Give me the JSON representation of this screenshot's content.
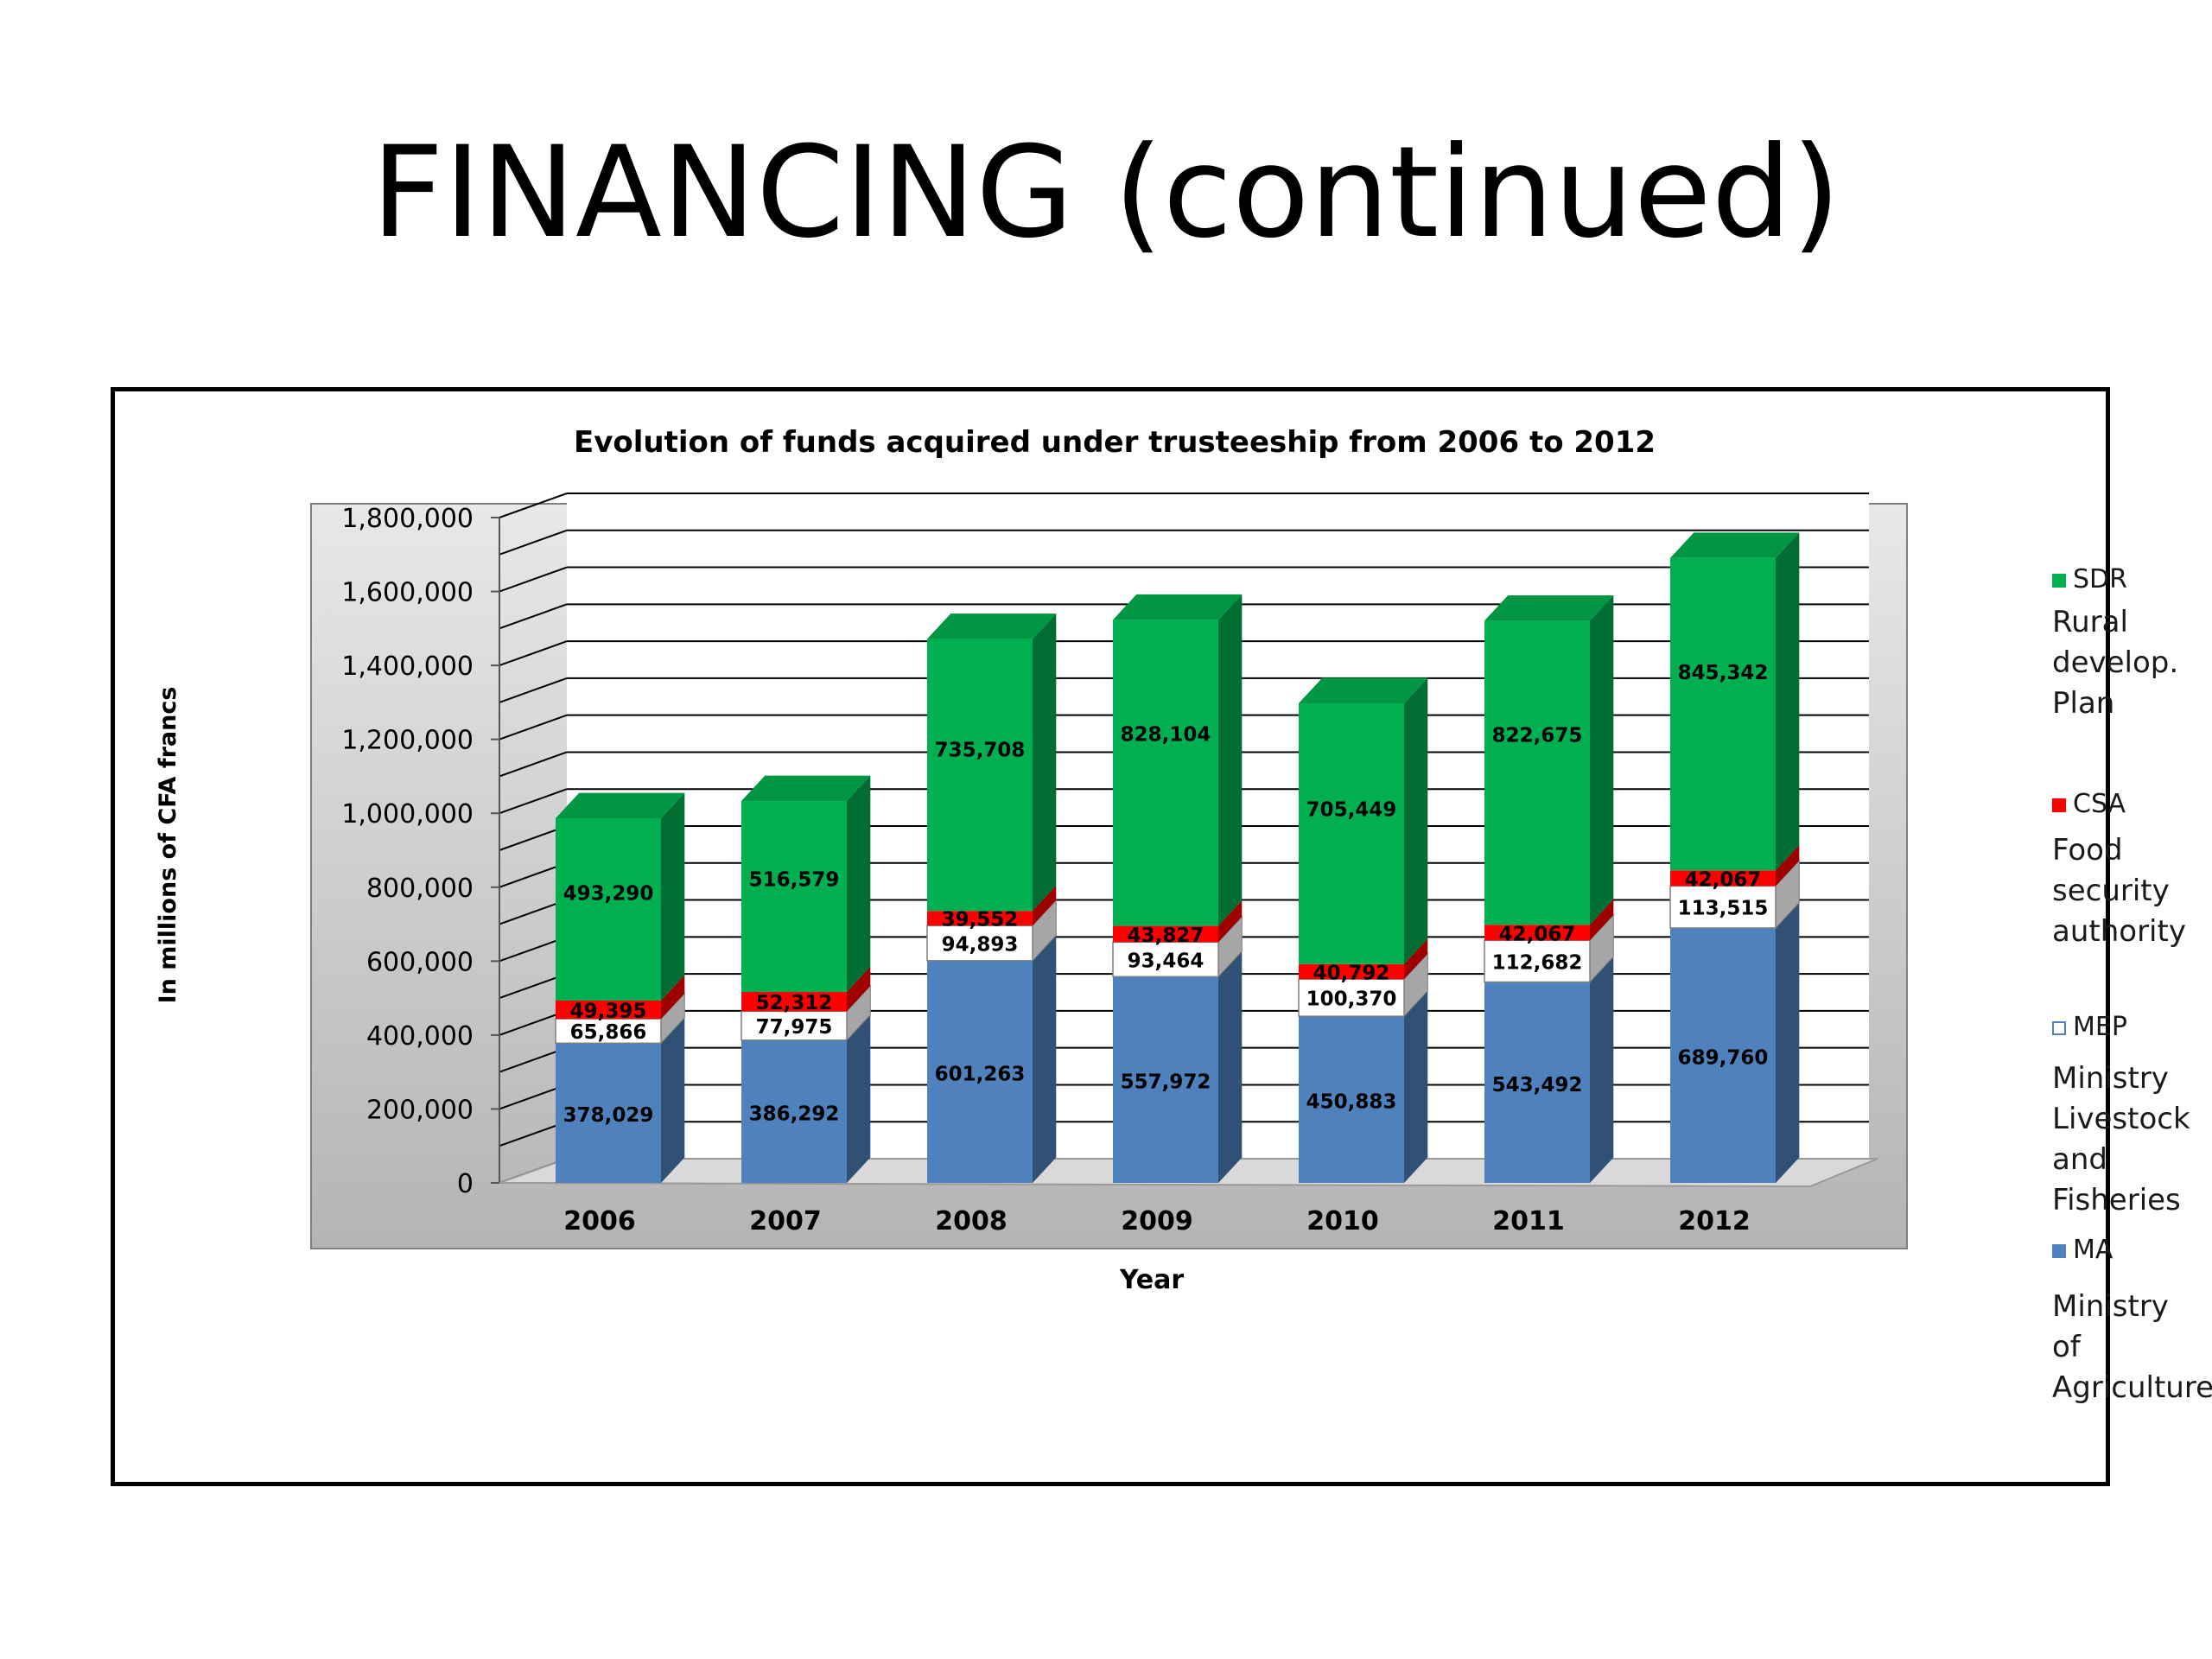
{
  "slide": {
    "title": "FINANCING (continued)"
  },
  "chart_data": {
    "type": "bar",
    "stacked": true,
    "style": "3d",
    "title": "Evolution  of funds acquired under trusteeship from 2006 to 2012",
    "xlabel": "Year",
    "ylabel": "In millions of CFA francs",
    "categories": [
      "2006",
      "2007",
      "2008",
      "2009",
      "2010",
      "2011",
      "2012"
    ],
    "ylim": [
      0,
      1800000
    ],
    "yticks": [
      "0",
      "200,000",
      "400,000",
      "600,000",
      "800,000",
      "1,000,000",
      "1,200,000",
      "1,400,000",
      "1,600,000",
      "1,800,000"
    ],
    "grid": true,
    "legend_position": "right",
    "series": [
      {
        "name": "MA",
        "description": "Ministry of Agriculture",
        "color": "#4f81bd",
        "values": [
          378029,
          386292,
          601263,
          557972,
          450883,
          543492,
          689760
        ],
        "labels": [
          "378,029",
          "386,292",
          "601,263",
          "557,972",
          "450,883",
          "543,492",
          "689,760"
        ]
      },
      {
        "name": "MEP",
        "description": "Ministry Livestock and Fisheries",
        "color": "#ffffff",
        "values": [
          65866,
          77975,
          94893,
          93464,
          100370,
          112682,
          113515
        ],
        "labels": [
          "65,866",
          "77,975",
          "94,893",
          "93,464",
          "100,370",
          "112,682",
          "113,515"
        ]
      },
      {
        "name": "CSA",
        "description": "Food security authority",
        "color": "#ff0000",
        "values": [
          49395,
          52312,
          39552,
          43827,
          40792,
          42067,
          42067
        ],
        "labels": [
          "49,395",
          "52,312",
          "39,552",
          "43,827",
          "40,792",
          "42,067",
          "42,067"
        ]
      },
      {
        "name": "SDR",
        "description": "Rural develop. Plan",
        "color": "#00b050",
        "values": [
          493290,
          516579,
          735708,
          828104,
          705449,
          822675,
          845342
        ],
        "labels": [
          "493,290",
          "516,579",
          "735,708",
          "828,104",
          "705,449",
          "822,675",
          "845,342"
        ]
      }
    ]
  }
}
